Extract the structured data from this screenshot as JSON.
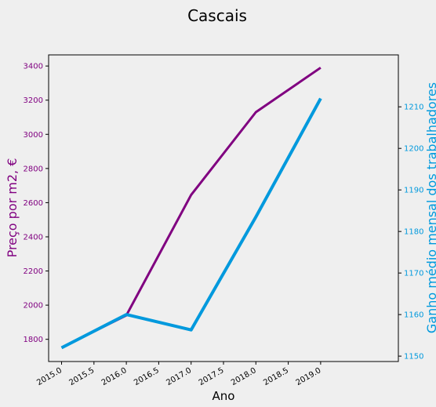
{
  "chart_data": {
    "type": "line",
    "title": "Cascais",
    "xlabel": "Ano",
    "x": [
      2015.0,
      2016.0,
      2017.0,
      2018.0,
      2019.0
    ],
    "xlim": [
      2014.8,
      2020.2
    ],
    "x_ticks": [
      "2015.0",
      "2015.5",
      "2016.0",
      "2016.5",
      "2017.0",
      "2017.5",
      "2018.0",
      "2018.5",
      "2019.0"
    ],
    "grid": false,
    "series": [
      {
        "axis": "left",
        "color": "#800080",
        "values": [
          1752,
          1940,
          2645,
          3130,
          3390
        ]
      },
      {
        "axis": "right",
        "color": "#0099dd",
        "values": [
          1152,
          1160,
          1156.3,
          1183.5,
          1212
        ]
      }
    ],
    "left_axis": {
      "label": "Preço por m2, €",
      "color": "#800080",
      "ylim": [
        1670,
        3465
      ],
      "ticks": [
        "1800",
        "2000",
        "2200",
        "2400",
        "2600",
        "2800",
        "3000",
        "3200",
        "3400"
      ]
    },
    "right_axis": {
      "label": "Ganho médio mensal dos trabalhadores",
      "color": "#0099dd",
      "ylim": [
        1148.7,
        1222.5
      ],
      "ticks": [
        "1150",
        "1160",
        "1170",
        "1180",
        "1190",
        "1200",
        "1210"
      ]
    }
  }
}
